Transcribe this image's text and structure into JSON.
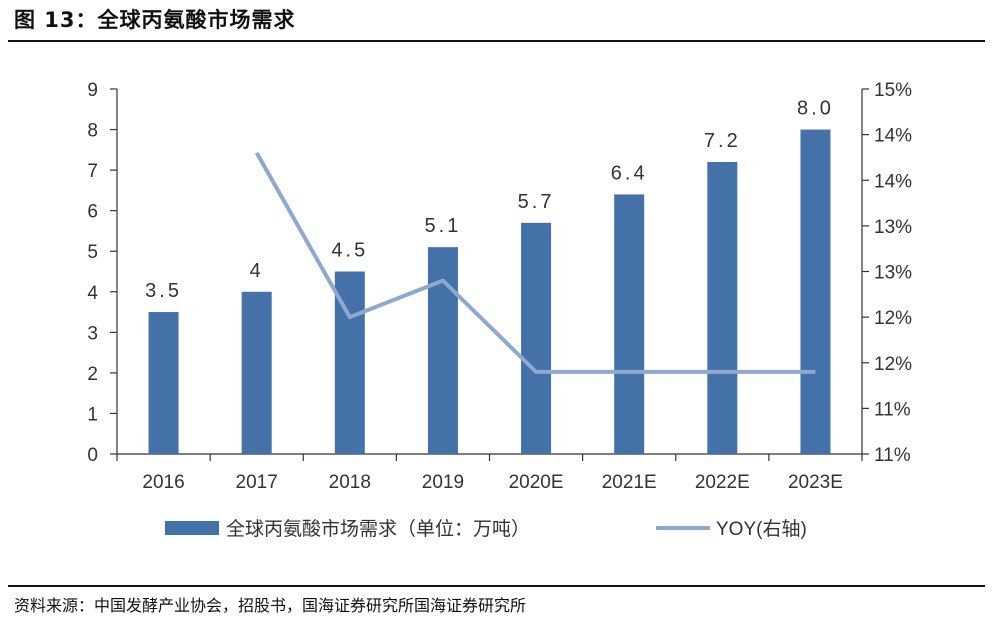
{
  "figure_title": "图 13：全球丙氨酸市场需求",
  "source": "资料来源：中国发酵产业协会，招股书，国海证券研究所国海证券研究所",
  "chart_data": {
    "type": "bar",
    "categories": [
      "2016",
      "2017",
      "2018",
      "2019",
      "2020E",
      "2021E",
      "2022E",
      "2023E"
    ],
    "series": [
      {
        "name": "全球丙氨酸市场需求（单位：万吨）",
        "type": "bar",
        "axis": "left",
        "values": [
          3.5,
          4,
          4.5,
          5.1,
          5.7,
          6.4,
          7.2,
          8.0
        ],
        "labels": [
          "3.5",
          "4",
          "4.5",
          "5.1",
          "5.7",
          "6.4",
          "7.2",
          "8.0"
        ],
        "color": "#4472a8"
      },
      {
        "name": "YOY(右轴)",
        "type": "line",
        "axis": "right",
        "values": [
          null,
          14.3,
          12.5,
          12.9,
          11.9,
          11.9,
          11.9,
          11.9
        ],
        "color": "#8fa8cf"
      }
    ],
    "y_left": {
      "ylim": [
        0,
        9
      ],
      "ticks": [
        "0",
        "1",
        "2",
        "3",
        "4",
        "5",
        "6",
        "7",
        "8",
        "9"
      ]
    },
    "y_right": {
      "ylim": [
        11,
        15
      ],
      "tick_values": [
        11,
        11.5,
        12,
        12.5,
        13,
        13.5,
        14,
        14.5,
        15
      ],
      "ticks": [
        "11%",
        "11%",
        "12%",
        "12%",
        "13%",
        "13%",
        "14%",
        "14%",
        "15%"
      ]
    },
    "legend": {
      "position": "bottom"
    },
    "grid": false
  }
}
